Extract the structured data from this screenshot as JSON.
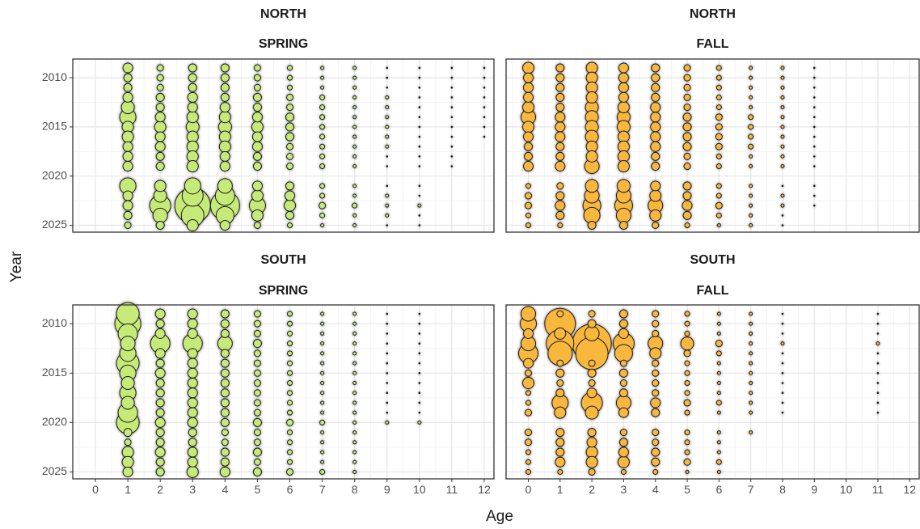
{
  "chart_data": {
    "type": "scatter",
    "subtype": "bubble",
    "xlabel": "Age",
    "ylabel": "Year",
    "x_ticks": [
      0,
      1,
      2,
      3,
      4,
      5,
      6,
      7,
      8,
      9,
      10,
      11,
      12
    ],
    "y_ticks": [
      2010,
      2015,
      2020,
      2025
    ],
    "xlim": [
      -0.7,
      12.3
    ],
    "ylim": [
      2008.1,
      2025.7
    ],
    "grid": true,
    "legend": "none",
    "colors": {
      "spring": "#c6ea78",
      "fall": "#f9b73c",
      "outline": "#1a1a1a"
    },
    "panels": [
      {
        "id": "north-spring",
        "region": "NORTH",
        "season": "SPRING",
        "color": "#c6ea78",
        "years": [
          2009,
          2010,
          2011,
          2012,
          2013,
          2014,
          2015,
          2016,
          2017,
          2018,
          2019,
          2021,
          2022,
          2023,
          2024,
          2025
        ],
        "sizes": {
          "1": [
            6,
            5,
            5,
            6,
            8,
            10,
            7,
            7,
            6,
            6,
            6,
            10,
            6,
            6,
            5,
            4
          ],
          "2": [
            4,
            4,
            4,
            5,
            5,
            6,
            7,
            6,
            6,
            5,
            5,
            7,
            8,
            13,
            9,
            5
          ],
          "3": [
            5,
            5,
            5,
            6,
            6,
            7,
            8,
            7,
            7,
            7,
            7,
            10,
            13,
            22,
            14,
            7
          ],
          "4": [
            5,
            5,
            5,
            5,
            6,
            7,
            8,
            7,
            7,
            6,
            6,
            9,
            12,
            18,
            11,
            6
          ],
          "5": [
            4,
            4,
            4,
            5,
            5,
            6,
            7,
            6,
            6,
            5,
            5,
            6,
            7,
            10,
            7,
            4
          ],
          "6": [
            3,
            3,
            3,
            4,
            4,
            5,
            5,
            5,
            4,
            4,
            4,
            5,
            6,
            7,
            5,
            3
          ],
          "7": [
            2,
            2,
            2,
            3,
            3,
            3,
            3,
            3,
            3,
            3,
            3,
            3,
            3,
            4,
            3,
            2
          ],
          "8": [
            2,
            2,
            2,
            2,
            2,
            2,
            2,
            2,
            2,
            2,
            2,
            2,
            2,
            3,
            2,
            2
          ],
          "9": [
            1,
            1,
            1,
            2,
            2,
            2,
            2,
            2,
            2,
            1,
            1,
            1,
            2,
            2,
            2,
            1
          ],
          "10": [
            1,
            1,
            1,
            1,
            1,
            1,
            1,
            1,
            1,
            1,
            1,
            1,
            1,
            2,
            1,
            1
          ],
          "11": [
            1,
            1,
            1,
            1,
            1,
            1,
            1,
            1,
            1,
            1,
            1
          ],
          "12": [
            1,
            1,
            1,
            1,
            1,
            1,
            1,
            1
          ]
        }
      },
      {
        "id": "north-fall",
        "region": "NORTH",
        "season": "FALL",
        "color": "#f9b73c",
        "years": [
          2009,
          2010,
          2011,
          2012,
          2013,
          2014,
          2015,
          2016,
          2017,
          2018,
          2019,
          2021,
          2022,
          2023,
          2024,
          2025
        ],
        "sizes": {
          "0": [
            7,
            6,
            6,
            6,
            7,
            9,
            7,
            6,
            5,
            5,
            6,
            3,
            4,
            4,
            3,
            3
          ],
          "1": [
            5,
            5,
            5,
            5,
            5,
            6,
            6,
            6,
            5,
            5,
            6,
            4,
            5,
            6,
            5,
            3
          ],
          "2": [
            7,
            7,
            7,
            7,
            8,
            8,
            8,
            8,
            7,
            7,
            9,
            8,
            9,
            11,
            10,
            5
          ],
          "3": [
            6,
            6,
            6,
            6,
            7,
            8,
            8,
            7,
            7,
            7,
            7,
            8,
            9,
            11,
            9,
            5
          ],
          "4": [
            5,
            5,
            5,
            5,
            6,
            6,
            6,
            6,
            6,
            5,
            5,
            6,
            7,
            9,
            7,
            4
          ],
          "5": [
            4,
            4,
            4,
            4,
            4,
            5,
            5,
            5,
            5,
            4,
            4,
            5,
            5,
            6,
            5,
            3
          ],
          "6": [
            3,
            3,
            3,
            3,
            3,
            4,
            4,
            4,
            4,
            3,
            3,
            3,
            3,
            4,
            3,
            2
          ],
          "7": [
            2,
            2,
            2,
            2,
            2,
            3,
            3,
            3,
            3,
            2,
            2,
            2,
            2,
            2,
            2,
            2
          ],
          "8": [
            2,
            2,
            2,
            2,
            2,
            2,
            2,
            2,
            2,
            2,
            2,
            1,
            2,
            2,
            1,
            1
          ],
          "9": [
            1,
            1,
            1,
            1,
            1,
            1,
            1,
            1,
            1,
            1,
            1,
            1,
            1,
            1
          ]
        }
      },
      {
        "id": "south-spring",
        "region": "SOUTH",
        "season": "SPRING",
        "color": "#c6ea78",
        "years": [
          2009,
          2010,
          2011,
          2012,
          2013,
          2014,
          2015,
          2016,
          2017,
          2018,
          2019,
          2020,
          2021,
          2022,
          2023,
          2024,
          2025
        ],
        "sizes": {
          "1": [
            14,
            16,
            12,
            9,
            10,
            14,
            10,
            8,
            10,
            8,
            12,
            14,
            5,
            4,
            7,
            7,
            6
          ],
          "2": [
            6,
            5,
            6,
            12,
            6,
            5,
            6,
            5,
            5,
            5,
            5,
            6,
            5,
            5,
            6,
            5,
            5
          ],
          "3": [
            6,
            6,
            6,
            12,
            6,
            6,
            6,
            6,
            6,
            6,
            6,
            6,
            5,
            5,
            6,
            6,
            7
          ],
          "4": [
            5,
            5,
            5,
            9,
            5,
            5,
            5,
            5,
            5,
            5,
            5,
            5,
            4,
            4,
            5,
            5,
            6
          ],
          "5": [
            4,
            4,
            4,
            5,
            4,
            4,
            4,
            4,
            4,
            4,
            4,
            5,
            4,
            4,
            5,
            4,
            5
          ],
          "6": [
            3,
            3,
            3,
            3,
            3,
            3,
            3,
            3,
            3,
            3,
            3,
            4,
            3,
            3,
            3,
            3,
            4
          ],
          "7": [
            2,
            2,
            2,
            2,
            2,
            2,
            2,
            2,
            2,
            2,
            2,
            3,
            2,
            2,
            2,
            2,
            3
          ],
          "8": [
            2,
            2,
            2,
            2,
            2,
            2,
            2,
            2,
            2,
            2,
            2,
            2,
            2,
            2,
            2,
            2,
            2
          ],
          "9": [
            1,
            1,
            1,
            1,
            1,
            1,
            1,
            1,
            1,
            1,
            1,
            2
          ],
          "10": [
            1,
            1,
            1,
            1,
            1,
            1,
            1,
            1,
            1,
            1,
            1,
            2
          ]
        }
      },
      {
        "id": "south-fall",
        "region": "SOUTH",
        "season": "FALL",
        "color": "#f9b73c",
        "years": [
          2009,
          2010,
          2011,
          2012,
          2013,
          2014,
          2015,
          2016,
          2017,
          2018,
          2019,
          2021,
          2022,
          2023,
          2024,
          2025
        ],
        "sizes": {
          "0": [
            9,
            10,
            6,
            9,
            12,
            6,
            4,
            7,
            3,
            3,
            4,
            4,
            4,
            3,
            3,
            3
          ],
          "1": [
            4,
            19,
            7,
            17,
            15,
            4,
            5,
            4,
            5,
            10,
            7,
            5,
            5,
            5,
            6,
            3
          ],
          "2": [
            4,
            5,
            9,
            24,
            20,
            4,
            5,
            4,
            6,
            13,
            8,
            5,
            6,
            7,
            7,
            4
          ],
          "3": [
            5,
            5,
            6,
            13,
            11,
            4,
            5,
            4,
            5,
            9,
            6,
            4,
            5,
            6,
            7,
            3
          ],
          "4": [
            4,
            4,
            4,
            9,
            7,
            4,
            4,
            4,
            4,
            6,
            5,
            4,
            4,
            5,
            5,
            3
          ],
          "5": [
            3,
            3,
            3,
            8,
            4,
            3,
            3,
            3,
            3,
            4,
            3,
            3,
            3,
            3,
            4,
            2
          ],
          "6": [
            2,
            2,
            2,
            4,
            3,
            2,
            2,
            2,
            2,
            3,
            2,
            2,
            2,
            2,
            3,
            2
          ],
          "7": [
            2,
            2,
            2,
            2,
            2,
            2,
            2,
            2,
            2,
            2,
            2,
            2
          ],
          "8": [
            1,
            1,
            1,
            2,
            1,
            1,
            1,
            1,
            1,
            1,
            1
          ],
          "11": [
            1,
            1,
            1,
            2,
            1,
            1,
            1,
            1,
            1,
            1,
            1
          ]
        }
      }
    ]
  }
}
